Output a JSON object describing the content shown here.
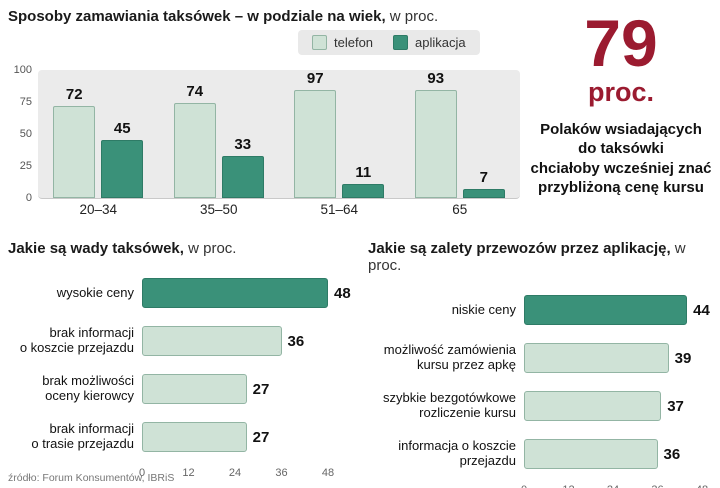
{
  "page": {
    "source": "źródło: Forum Konsumentów, IBRiS"
  },
  "colors": {
    "light_bar": "#cfe2d6",
    "light_bar_border": "#93b5a4",
    "dark_bar": "#3a9179",
    "accent_red": "#9b1b30",
    "panel_bg": "#ebebeb"
  },
  "callout": {
    "number": "79",
    "unit": "proc.",
    "text": "Polaków wsiadających\ndo taksówki\nchciałoby wcześniej znać\nprzybliżoną cenę kursu"
  },
  "chart_data": [
    {
      "id": "age-groups",
      "type": "bar",
      "title": "Sposoby zamawiania taksówek – w podziale na wiek,",
      "title_suffix": " w proc.",
      "categories": [
        "20–34",
        "35–50",
        "51–64",
        "65"
      ],
      "series": [
        {
          "name": "telefon",
          "color_key": "light",
          "values": [
            72,
            74,
            97,
            93
          ]
        },
        {
          "name": "aplikacja",
          "color_key": "dark",
          "values": [
            45,
            33,
            11,
            7
          ]
        }
      ],
      "ylim": [
        0,
        100
      ],
      "yticks": [
        0,
        25,
        50,
        75,
        100
      ],
      "legend_position": "top",
      "grid": false
    },
    {
      "id": "taxi-disadvantages",
      "type": "bar-horizontal",
      "title": "Jakie są wady taksówek,",
      "title_suffix": " w proc.",
      "categories": [
        "wysokie ceny",
        "brak informacji\no koszcie przejazdu",
        "brak możliwości\noceny kierowcy",
        "brak informacji\no trasie przejazdu"
      ],
      "values": [
        48,
        36,
        27,
        27
      ],
      "highlight_index": 0,
      "xlim": [
        0,
        48
      ],
      "xticks": [
        0,
        12,
        24,
        36,
        48
      ],
      "grid": false
    },
    {
      "id": "app-advantages",
      "type": "bar-horizontal",
      "title": "Jakie są zalety przewozów przez aplikację,",
      "title_suffix": " w proc.",
      "categories": [
        "niskie ceny",
        "możliwość zamówienia\nkursu przez apkę",
        "szybkie bezgotówkowe\nrozliczenie kursu",
        "informacja o koszcie\nprzejazdu"
      ],
      "values": [
        44,
        39,
        37,
        36
      ],
      "highlight_index": 0,
      "xlim": [
        0,
        48
      ],
      "xticks": [
        0,
        12,
        24,
        36,
        48
      ],
      "grid": false
    }
  ]
}
